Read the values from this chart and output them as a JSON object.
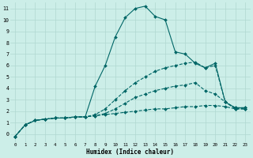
{
  "title": "",
  "xlabel": "Humidex (Indice chaleur)",
  "background_color": "#cceee8",
  "grid_color": "#b0d8d0",
  "line_color": "#006666",
  "xlim": [
    -0.5,
    23.5
  ],
  "ylim": [
    -0.7,
    11.5
  ],
  "xticks": [
    0,
    1,
    2,
    3,
    4,
    5,
    6,
    7,
    8,
    9,
    10,
    11,
    12,
    13,
    14,
    15,
    16,
    17,
    18,
    19,
    20,
    21,
    22,
    23
  ],
  "yticks": [
    0,
    1,
    2,
    3,
    4,
    5,
    6,
    7,
    8,
    9,
    10,
    11
  ],
  "series": [
    {
      "x": [
        0,
        1,
        2,
        3,
        4,
        5,
        6,
        7,
        8,
        9,
        10,
        11,
        12,
        13,
        14,
        15,
        16,
        17,
        18,
        19,
        20,
        21,
        22,
        23
      ],
      "y": [
        -0.2,
        0.8,
        1.2,
        1.3,
        1.4,
        1.4,
        1.5,
        1.5,
        1.6,
        1.7,
        1.8,
        1.9,
        2.0,
        2.1,
        2.2,
        2.2,
        2.3,
        2.4,
        2.4,
        2.5,
        2.5,
        2.4,
        2.2,
        2.2
      ],
      "linestyle": "--",
      "linewidth": 0.8,
      "markersize": 2.0
    },
    {
      "x": [
        0,
        1,
        2,
        3,
        4,
        5,
        6,
        7,
        8,
        9,
        10,
        11,
        12,
        13,
        14,
        15,
        16,
        17,
        18,
        19,
        20,
        21,
        22,
        23
      ],
      "y": [
        -0.2,
        0.8,
        1.2,
        1.3,
        1.4,
        1.4,
        1.5,
        1.5,
        1.6,
        1.8,
        2.2,
        2.7,
        3.2,
        3.5,
        3.8,
        4.0,
        4.2,
        4.3,
        4.5,
        3.8,
        3.5,
        2.8,
        2.2,
        2.2
      ],
      "linestyle": "--",
      "linewidth": 0.8,
      "markersize": 2.0
    },
    {
      "x": [
        0,
        1,
        2,
        3,
        4,
        5,
        6,
        7,
        8,
        9,
        10,
        11,
        12,
        13,
        14,
        15,
        16,
        17,
        18,
        19,
        20,
        21,
        22,
        23
      ],
      "y": [
        -0.2,
        0.8,
        1.2,
        1.3,
        1.4,
        1.4,
        1.5,
        1.5,
        1.7,
        2.2,
        3.0,
        3.8,
        4.5,
        5.0,
        5.5,
        5.8,
        6.0,
        6.2,
        6.3,
        5.8,
        6.0,
        2.8,
        2.3,
        2.3
      ],
      "linestyle": "--",
      "linewidth": 0.8,
      "markersize": 2.0
    },
    {
      "x": [
        0,
        1,
        2,
        3,
        4,
        5,
        6,
        7,
        8,
        9,
        10,
        11,
        12,
        13,
        14,
        15,
        16,
        17,
        18,
        19,
        20,
        21,
        22,
        23
      ],
      "y": [
        -0.2,
        0.8,
        1.2,
        1.3,
        1.4,
        1.4,
        1.5,
        1.5,
        4.2,
        6.0,
        8.5,
        10.2,
        11.0,
        11.2,
        10.3,
        10.0,
        7.2,
        7.0,
        6.2,
        5.8,
        6.2,
        2.8,
        2.3,
        2.3
      ],
      "linestyle": "-",
      "linewidth": 0.8,
      "markersize": 2.0
    }
  ]
}
